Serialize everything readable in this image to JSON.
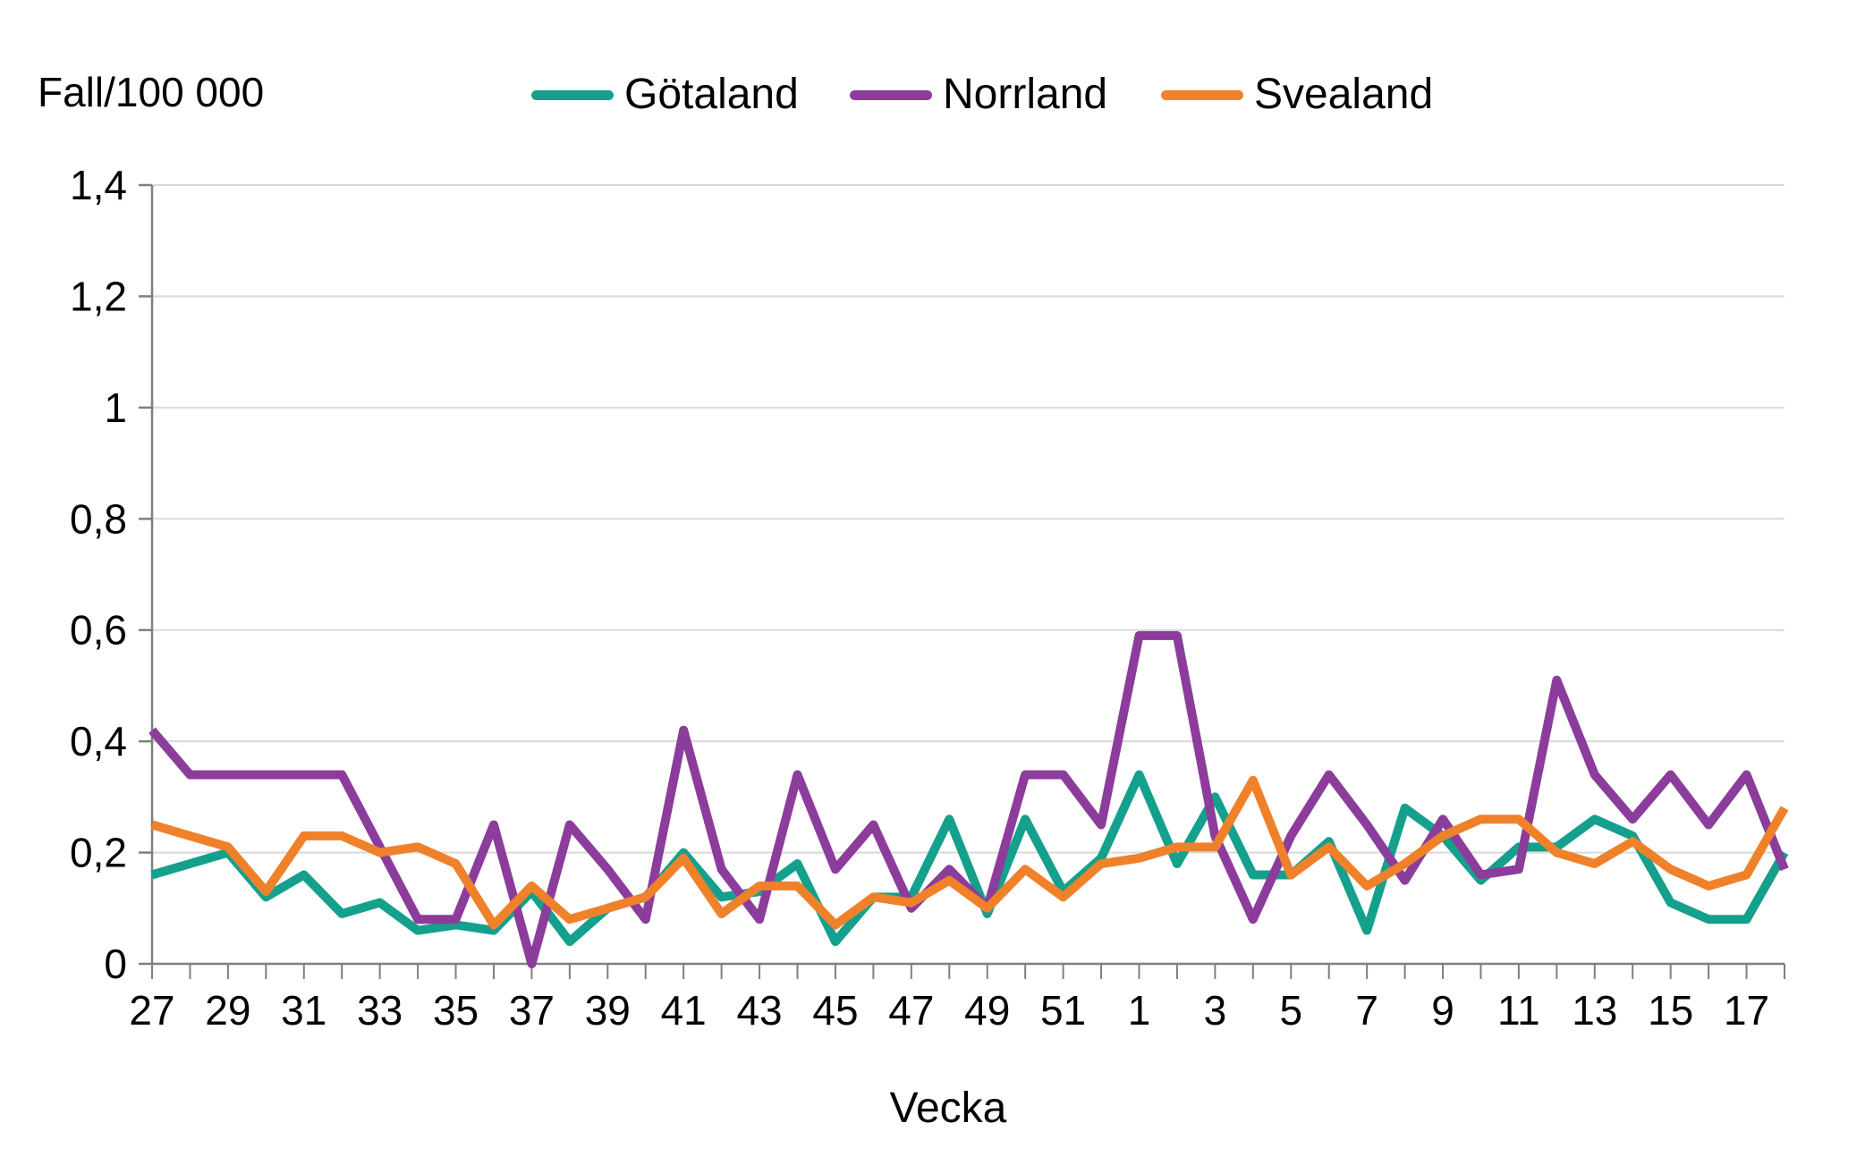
{
  "header": {
    "y_axis_title": "Fall/100 000",
    "x_axis_title": "Vecka"
  },
  "chart_data": {
    "type": "line",
    "title": "",
    "ylabel": "Fall/100 000",
    "xlabel": "Vecka",
    "ylim": [
      0,
      1.4
    ],
    "ytick_step": 0.2,
    "ytick_labels": [
      "0",
      "0,2",
      "0,4",
      "0,6",
      "0,8",
      "1",
      "1,2",
      "1,4"
    ],
    "grid": "horizontal",
    "legend_position": "top",
    "colors": {
      "grid": "#D9D9D9",
      "axis": "#7F7F7F",
      "text": "#000000"
    },
    "categories": [
      27,
      28,
      29,
      30,
      31,
      32,
      33,
      34,
      35,
      36,
      37,
      38,
      39,
      40,
      41,
      42,
      43,
      44,
      45,
      46,
      47,
      48,
      49,
      50,
      51,
      52,
      1,
      2,
      3,
      4,
      5,
      6,
      7,
      8,
      9,
      10,
      11,
      12,
      13,
      14,
      15,
      16,
      17,
      18
    ],
    "xtick_labels_shown": "odd weeks only",
    "series": [
      {
        "name": "Götaland",
        "color": "#14A08C",
        "values": [
          0.16,
          0.18,
          0.2,
          0.12,
          0.16,
          0.09,
          0.11,
          0.06,
          0.07,
          0.06,
          0.13,
          0.04,
          0.1,
          0.12,
          0.2,
          0.12,
          0.13,
          0.18,
          0.04,
          0.12,
          0.12,
          0.26,
          0.09,
          0.26,
          0.13,
          0.19,
          0.34,
          0.18,
          0.3,
          0.16,
          0.16,
          0.22,
          0.06,
          0.28,
          0.23,
          0.15,
          0.21,
          0.21,
          0.26,
          0.23,
          0.11,
          0.08,
          0.08,
          0.2
        ]
      },
      {
        "name": "Norrland",
        "color": "#8C3C9B",
        "values": [
          0.42,
          0.34,
          0.34,
          0.34,
          0.34,
          0.34,
          0.21,
          0.08,
          0.08,
          0.25,
          0.0,
          0.25,
          0.17,
          0.08,
          0.42,
          0.17,
          0.08,
          0.34,
          0.17,
          0.25,
          0.1,
          0.17,
          0.1,
          0.34,
          0.34,
          0.25,
          0.59,
          0.59,
          0.23,
          0.08,
          0.23,
          0.34,
          0.25,
          0.15,
          0.26,
          0.16,
          0.17,
          0.51,
          0.34,
          0.26,
          0.34,
          0.25,
          0.34,
          0.17
        ]
      },
      {
        "name": "Svealand",
        "color": "#F0812B",
        "values": [
          0.25,
          0.23,
          0.21,
          0.13,
          0.23,
          0.23,
          0.2,
          0.21,
          0.18,
          0.07,
          0.14,
          0.08,
          0.1,
          0.12,
          0.19,
          0.09,
          0.14,
          0.14,
          0.07,
          0.12,
          0.11,
          0.15,
          0.1,
          0.17,
          0.12,
          0.18,
          0.19,
          0.21,
          0.21,
          0.33,
          0.16,
          0.21,
          0.14,
          0.18,
          0.23,
          0.26,
          0.26,
          0.2,
          0.18,
          0.22,
          0.17,
          0.14,
          0.16,
          0.28
        ]
      }
    ]
  }
}
